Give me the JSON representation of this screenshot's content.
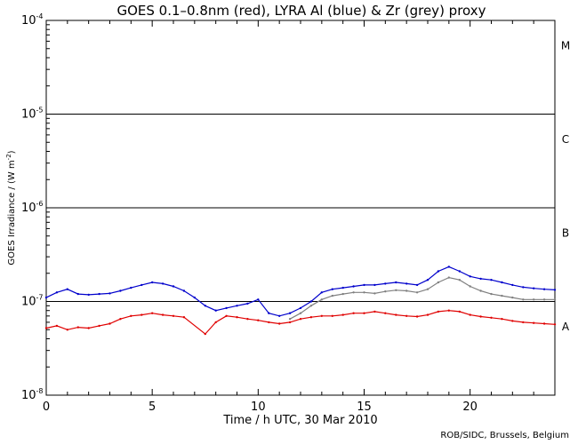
{
  "chart_data": {
    "type": "line",
    "title": "GOES 0.1–0.8nm (red), LYRA Al (blue) & Zr (grey) proxy",
    "xlabel": "Time / h UTC, 30 Mar 2010",
    "ylabel": "GOES Irradiance / (W m",
    "ylabel_exp": "-2",
    "ylabel_close": ")",
    "xlim": [
      0,
      24
    ],
    "ylim": [
      1e-08,
      0.0001
    ],
    "yscale": "log",
    "x_ticks": [
      0,
      5,
      10,
      15,
      20
    ],
    "x_tick_labels": [
      "0",
      "5",
      "10",
      "15",
      "20"
    ],
    "y_ticks": [
      {
        "value": 0.0001,
        "base": "10",
        "exp": "-4"
      },
      {
        "value": 1e-05,
        "base": "10",
        "exp": "-5"
      },
      {
        "value": 1e-06,
        "base": "10",
        "exp": "-6"
      },
      {
        "value": 1e-07,
        "base": "10",
        "exp": "-7"
      },
      {
        "value": 1e-08,
        "base": "10",
        "exp": "-8"
      }
    ],
    "flare_class_lines": [
      1e-05,
      1e-06,
      1e-07
    ],
    "flare_classes": [
      {
        "label": "M",
        "value": 5.5e-05
      },
      {
        "label": "C",
        "value": 5.5e-06
      },
      {
        "label": "B",
        "value": 5.5e-07
      },
      {
        "label": "A",
        "value": 5.5e-08
      }
    ],
    "colors": {
      "goes": "#e00000",
      "lyra_al": "#0000cc",
      "lyra_zr": "#808080",
      "axes": "#000000"
    },
    "series": [
      {
        "color": "#0000cc",
        "x": [
          0,
          0.5,
          1,
          1.5,
          2,
          2.5,
          3,
          3.5,
          4,
          4.5,
          5,
          5.5,
          6,
          6.5,
          7,
          7.5,
          8,
          8.5,
          9,
          9.5,
          10,
          10.5,
          11,
          11.5,
          12,
          12.5,
          13,
          13.5,
          14,
          14.5,
          15,
          15.5,
          16,
          16.5,
          17,
          17.5,
          18,
          18.5,
          19,
          19.5,
          20,
          20.5,
          21,
          21.5,
          22,
          22.5,
          23,
          23.5,
          24
        ],
        "y": [
          1.1e-07,
          1.25e-07,
          1.35e-07,
          1.2e-07,
          1.18e-07,
          1.2e-07,
          1.22e-07,
          1.3e-07,
          1.4e-07,
          1.5e-07,
          1.6e-07,
          1.55e-07,
          1.45e-07,
          1.3e-07,
          1.1e-07,
          9e-08,
          8e-08,
          8.5e-08,
          9e-08,
          9.5e-08,
          1.05e-07,
          7.5e-08,
          7e-08,
          7.5e-08,
          8.5e-08,
          1e-07,
          1.25e-07,
          1.35e-07,
          1.4e-07,
          1.45e-07,
          1.5e-07,
          1.5e-07,
          1.55e-07,
          1.6e-07,
          1.55e-07,
          1.5e-07,
          1.7e-07,
          2.1e-07,
          2.35e-07,
          2.1e-07,
          1.85e-07,
          1.75e-07,
          1.7e-07,
          1.6e-07,
          1.5e-07,
          1.42e-07,
          1.38e-07,
          1.35e-07,
          1.33e-07
        ]
      },
      {
        "color": "#808080",
        "x": [
          11.5,
          12,
          12.5,
          13,
          13.5,
          14,
          14.5,
          15,
          15.5,
          16,
          16.5,
          17,
          17.5,
          18,
          18.5,
          19,
          19.5,
          20,
          20.5,
          21,
          21.5,
          22,
          22.5,
          23,
          23.5,
          24
        ],
        "y": [
          6.5e-08,
          7.5e-08,
          9e-08,
          1.05e-07,
          1.15e-07,
          1.2e-07,
          1.25e-07,
          1.25e-07,
          1.22e-07,
          1.28e-07,
          1.32e-07,
          1.3e-07,
          1.25e-07,
          1.35e-07,
          1.6e-07,
          1.8e-07,
          1.7e-07,
          1.45e-07,
          1.3e-07,
          1.2e-07,
          1.15e-07,
          1.1e-07,
          1.05e-07,
          1.05e-07,
          1.05e-07,
          1.05e-07
        ]
      },
      {
        "color": "#e00000",
        "x": [
          0,
          0.5,
          1,
          1.5,
          2,
          2.5,
          3,
          3.5,
          4,
          4.5,
          5,
          5.5,
          6,
          6.5,
          7.5,
          8,
          8.5,
          9,
          9.5,
          10,
          10.5,
          11,
          11.5,
          12,
          12.5,
          13,
          13.5,
          14,
          14.5,
          15,
          15.5,
          16,
          16.5,
          17,
          17.5,
          18,
          18.5,
          19,
          19.5,
          20,
          20.5,
          21,
          21.5,
          22,
          22.5,
          23,
          23.5,
          24
        ],
        "y": [
          5.2e-08,
          5.5e-08,
          5e-08,
          5.3e-08,
          5.2e-08,
          5.5e-08,
          5.8e-08,
          6.5e-08,
          7e-08,
          7.2e-08,
          7.5e-08,
          7.2e-08,
          7e-08,
          6.8e-08,
          4.5e-08,
          6e-08,
          7e-08,
          6.8e-08,
          6.5e-08,
          6.3e-08,
          6e-08,
          5.8e-08,
          6e-08,
          6.5e-08,
          6.8e-08,
          7e-08,
          7e-08,
          7.2e-08,
          7.5e-08,
          7.5e-08,
          7.8e-08,
          7.5e-08,
          7.2e-08,
          7e-08,
          6.9e-08,
          7.2e-08,
          7.8e-08,
          8e-08,
          7.8e-08,
          7.2e-08,
          6.9e-08,
          6.7e-08,
          6.5e-08,
          6.2e-08,
          6e-08,
          5.9e-08,
          5.8e-08,
          5.7e-08
        ]
      }
    ]
  },
  "credit": "ROB/SIDC, Brussels, Belgium"
}
